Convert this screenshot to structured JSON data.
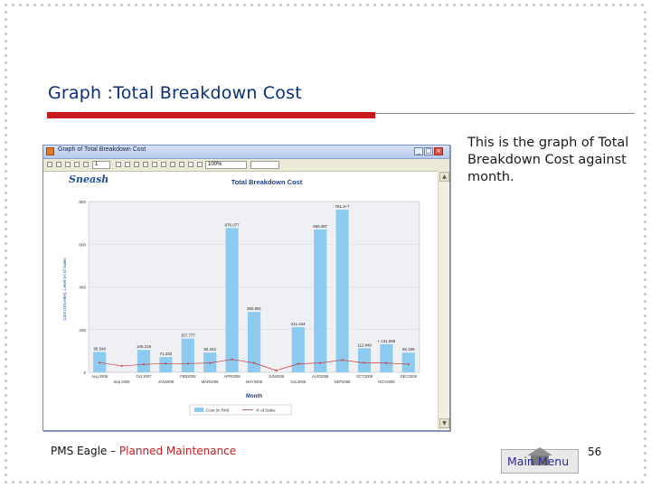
{
  "slide": {
    "title": "Graph :Total Breakdown Cost",
    "caption": "This is the graph of Total Breakdown Cost against month.",
    "footer_left": "PMS Eagle – ",
    "footer_left_highlight": "Planned Maintenance",
    "main_menu_label": "Main Menu",
    "page_number": "56"
  },
  "window": {
    "title": "Graph of Total Breakdown Cost",
    "toolbar": {
      "page_value": "1",
      "zoom_value": "100%"
    }
  },
  "report": {
    "brand": "Sneash",
    "colors": {
      "bar": "#8ccaf0",
      "line": "#c83a3a",
      "plot_bg": "#eef0f3"
    }
  },
  "chart_data": {
    "type": "bar",
    "title": "Total Breakdown Cost",
    "xlabel": "Month",
    "ylabel": "Cost (Ori=Hire), Level Vs of Sales",
    "ylim": [
      0,
      800
    ],
    "yticks": [
      "0",
      "200",
      "400",
      "600",
      "800"
    ],
    "categories": [
      "Aug 2006",
      "Sep 2006",
      "Oct 2007",
      "JAN2008",
      "FEB2008",
      "MAR2008",
      "APR2008",
      "MAY2008",
      "JUN2008",
      "JUL2008",
      "AUG2008",
      "SEP2008",
      "OCT2008",
      "NOV2008",
      "DEC2008"
    ],
    "series": [
      {
        "name": "Cost (in RM)",
        "values": [
          95.549,
          0,
          105.219,
          71.332,
          157.777,
          92.442,
          676.077,
          282.991,
          0,
          211.434,
          669.487,
          761.347,
          112.849,
          131.868,
          92.195
        ],
        "labels": [
          "95.549",
          "",
          "105.219",
          "71.332",
          "157.777",
          "92.442",
          "676.077",
          "282.991",
          "",
          "211.434",
          "669.487",
          "761.3+7",
          "112.849",
          "+ 131.868",
          "92.195"
        ]
      },
      {
        "name": "% of Sales",
        "values": [
          8,
          4.6,
          6.2,
          7,
          7,
          7.6,
          11.2,
          7.6,
          0,
          6.7,
          7.6,
          10.5,
          7.7,
          7.5,
          6.3
        ]
      }
    ],
    "legend_position": "bottom"
  }
}
